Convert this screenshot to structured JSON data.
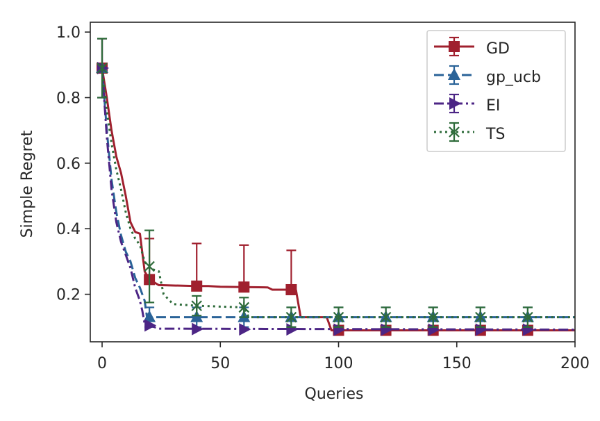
{
  "chart_data": {
    "type": "line",
    "xlabel": "Queries",
    "ylabel": "Simple Regret",
    "xlim": [
      -5,
      200
    ],
    "ylim": [
      0.055,
      1.03
    ],
    "xticks": [
      0,
      50,
      100,
      150,
      200
    ],
    "yticks": [
      0.2,
      0.4,
      0.6,
      0.8,
      1.0
    ],
    "xtick_labels": [
      "0",
      "50",
      "100",
      "150",
      "200"
    ],
    "ytick_labels": [
      "0.2",
      "0.4",
      "0.6",
      "0.8",
      "1.0"
    ],
    "legend_position": "top-right",
    "series": [
      {
        "name": "GD",
        "color": "#a0202e",
        "dash": "solid",
        "marker": "square",
        "line": [
          [
            0,
            0.89
          ],
          [
            2,
            0.8
          ],
          [
            4,
            0.7
          ],
          [
            6,
            0.62
          ],
          [
            8,
            0.57
          ],
          [
            10,
            0.5
          ],
          [
            12,
            0.42
          ],
          [
            14,
            0.39
          ],
          [
            16,
            0.385
          ],
          [
            18,
            0.27
          ],
          [
            20,
            0.245
          ],
          [
            24,
            0.228
          ],
          [
            40,
            0.225
          ],
          [
            45,
            0.225
          ],
          [
            50,
            0.223
          ],
          [
            60,
            0.222
          ],
          [
            70,
            0.221
          ],
          [
            72,
            0.214
          ],
          [
            80,
            0.214
          ],
          [
            82,
            0.213
          ],
          [
            84,
            0.13
          ],
          [
            95,
            0.13
          ],
          [
            97,
            0.09
          ],
          [
            200,
            0.09
          ]
        ],
        "points": [
          [
            0,
            0.89
          ],
          [
            20,
            0.245
          ],
          [
            40,
            0.225
          ],
          [
            60,
            0.222
          ],
          [
            80,
            0.214
          ],
          [
            100,
            0.09
          ],
          [
            120,
            0.09
          ],
          [
            140,
            0.09
          ],
          [
            160,
            0.09
          ],
          [
            180,
            0.09
          ]
        ],
        "err_upper": [
          0.09,
          0.125,
          0.13,
          0.128,
          0.12,
          0,
          0,
          0,
          0,
          0
        ],
        "err_lower": [
          0,
          0,
          0,
          0,
          0,
          0,
          0,
          0,
          0,
          0
        ]
      },
      {
        "name": "gp_ucb",
        "color": "#2a6398",
        "dash": "dashed",
        "marker": "triangle-up",
        "line": [
          [
            0,
            0.89
          ],
          [
            2,
            0.7
          ],
          [
            4,
            0.55
          ],
          [
            6,
            0.45
          ],
          [
            8,
            0.38
          ],
          [
            10,
            0.33
          ],
          [
            12,
            0.3
          ],
          [
            14,
            0.25
          ],
          [
            16,
            0.22
          ],
          [
            18,
            0.18
          ],
          [
            19,
            0.13
          ],
          [
            200,
            0.13
          ]
        ],
        "points": [
          [
            0,
            0.89
          ],
          [
            20,
            0.13
          ],
          [
            40,
            0.13
          ],
          [
            60,
            0.13
          ],
          [
            80,
            0.13
          ],
          [
            100,
            0.13
          ],
          [
            120,
            0.13
          ],
          [
            140,
            0.13
          ],
          [
            160,
            0.13
          ],
          [
            180,
            0.13
          ]
        ],
        "err_upper": [
          0,
          0.03,
          0.03,
          0.03,
          0.03,
          0.03,
          0.03,
          0.03,
          0.03,
          0.03
        ],
        "err_lower": [
          0,
          0.03,
          0.03,
          0.03,
          0.03,
          0.03,
          0.03,
          0.03,
          0.03,
          0.03
        ]
      },
      {
        "name": "EI",
        "color": "#4c2585",
        "dash": "dashdot",
        "marker": "triangle-right",
        "line": [
          [
            0,
            0.89
          ],
          [
            2,
            0.68
          ],
          [
            4,
            0.52
          ],
          [
            6,
            0.42
          ],
          [
            8,
            0.36
          ],
          [
            10,
            0.32
          ],
          [
            12,
            0.28
          ],
          [
            14,
            0.22
          ],
          [
            16,
            0.18
          ],
          [
            17,
            0.15
          ],
          [
            18,
            0.11
          ],
          [
            20,
            0.105
          ],
          [
            24,
            0.095
          ],
          [
            200,
            0.092
          ]
        ],
        "points": [
          [
            0,
            0.89
          ],
          [
            20,
            0.105
          ],
          [
            40,
            0.094
          ],
          [
            60,
            0.093
          ],
          [
            80,
            0.093
          ],
          [
            100,
            0.092
          ],
          [
            120,
            0.092
          ],
          [
            140,
            0.092
          ],
          [
            160,
            0.092
          ],
          [
            180,
            0.092
          ]
        ],
        "err_upper": [
          0.09,
          0,
          0,
          0,
          0,
          0,
          0,
          0,
          0,
          0
        ],
        "err_lower": [
          0.09,
          0,
          0,
          0,
          0,
          0,
          0,
          0,
          0,
          0
        ]
      },
      {
        "name": "TS",
        "color": "#2e6b3a",
        "dash": "dotted",
        "marker": "x-star",
        "line": [
          [
            0,
            0.89
          ],
          [
            2,
            0.76
          ],
          [
            4,
            0.66
          ],
          [
            6,
            0.58
          ],
          [
            8,
            0.52
          ],
          [
            10,
            0.45
          ],
          [
            12,
            0.4
          ],
          [
            14,
            0.37
          ],
          [
            16,
            0.35
          ],
          [
            18,
            0.3
          ],
          [
            20,
            0.28
          ],
          [
            24,
            0.27
          ],
          [
            26,
            0.2
          ],
          [
            30,
            0.17
          ],
          [
            40,
            0.165
          ],
          [
            60,
            0.16
          ],
          [
            62,
            0.13
          ],
          [
            200,
            0.13
          ]
        ],
        "points": [
          [
            0,
            0.89
          ],
          [
            20,
            0.285
          ],
          [
            40,
            0.165
          ],
          [
            60,
            0.16
          ],
          [
            80,
            0.13
          ],
          [
            100,
            0.13
          ],
          [
            120,
            0.13
          ],
          [
            140,
            0.13
          ],
          [
            160,
            0.13
          ],
          [
            180,
            0.13
          ]
        ],
        "err_upper": [
          0.09,
          0.11,
          0.03,
          0.03,
          0.03,
          0.03,
          0.03,
          0.03,
          0.03,
          0.03
        ],
        "err_lower": [
          0.09,
          0.11,
          0.03,
          0.03,
          0.03,
          0.03,
          0.03,
          0.03,
          0.03,
          0.03
        ]
      }
    ]
  }
}
